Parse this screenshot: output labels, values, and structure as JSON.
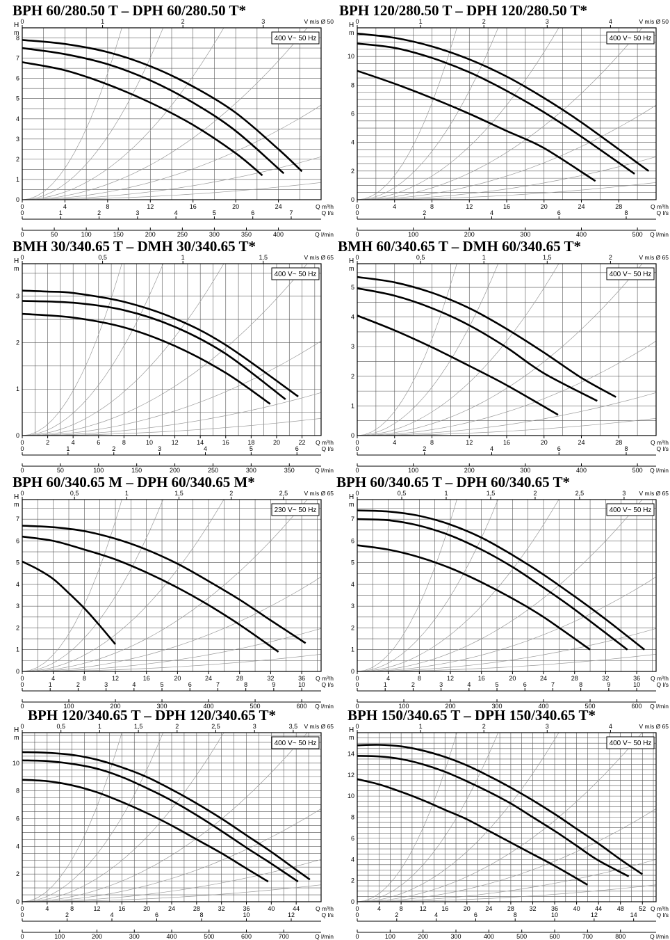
{
  "chart_data": [
    {
      "type": "line",
      "title": "BPH 60/280.50 T – DPH 60/280.50 T*",
      "ylabel": "H",
      "yunit": "m",
      "voltage_label": "400 V~ 50 Hz",
      "x_axis": {
        "label": "Q m³/h",
        "range": [
          0,
          28
        ],
        "ticks": [
          0,
          4,
          8,
          12,
          16,
          20,
          24
        ]
      },
      "y_axis": {
        "range": [
          0,
          8.5
        ],
        "ticks": [
          0,
          1,
          2,
          3,
          4,
          5,
          6,
          7,
          8
        ]
      },
      "velocity_axis": {
        "label": "V m/s Ø 50",
        "ticks": [
          0,
          1,
          2,
          3
        ]
      },
      "flow_ls_axis": {
        "label": "Q l/s",
        "ticks": [
          0,
          1,
          2,
          3,
          4,
          5,
          6,
          7
        ]
      },
      "flow_lmin_axis": {
        "label": "Q l/min",
        "ticks": [
          0,
          50,
          100,
          150,
          200,
          250,
          300,
          350,
          400
        ]
      },
      "grid": true,
      "series": [
        {
          "x": [
            0,
            4,
            8,
            12,
            16,
            20,
            22.5
          ],
          "y": [
            6.8,
            6.4,
            5.7,
            4.8,
            3.7,
            2.3,
            1.2
          ]
        },
        {
          "x": [
            0,
            4,
            8,
            12,
            16,
            20,
            24.5
          ],
          "y": [
            7.5,
            7.2,
            6.7,
            5.9,
            4.8,
            3.4,
            1.3
          ]
        },
        {
          "x": [
            0,
            4,
            8,
            12,
            16,
            20,
            24,
            26.2
          ],
          "y": [
            7.9,
            7.7,
            7.3,
            6.6,
            5.6,
            4.3,
            2.5,
            1.4
          ]
        }
      ]
    },
    {
      "type": "line",
      "title": "BPH 120/280.50 T – DPH 120/280.50 T*",
      "ylabel": "H",
      "yunit": "m",
      "voltage_label": "400 V~ 50 Hz",
      "x_axis": {
        "label": "Q m³/h",
        "range": [
          0,
          32
        ],
        "ticks": [
          0,
          4,
          8,
          12,
          16,
          20,
          24,
          28
        ]
      },
      "y_axis": {
        "range": [
          0,
          12
        ],
        "ticks": [
          0,
          2,
          4,
          6,
          8,
          10
        ]
      },
      "velocity_axis": {
        "label": "V m/s Ø 50",
        "ticks": [
          0,
          1,
          2,
          3,
          4
        ]
      },
      "flow_ls_axis": {
        "label": "Q l/s",
        "ticks": [
          0,
          2,
          4,
          6,
          8
        ]
      },
      "flow_lmin_axis": {
        "label": "Q l/min",
        "ticks": [
          0,
          100,
          200,
          300,
          400,
          500
        ]
      },
      "grid": true,
      "series": [
        {
          "x": [
            0,
            4,
            8,
            12,
            16,
            20,
            25.5
          ],
          "y": [
            9.0,
            8.1,
            7.1,
            6.0,
            4.8,
            3.6,
            1.3
          ]
        },
        {
          "x": [
            0,
            4,
            8,
            12,
            16,
            20,
            24,
            29.7
          ],
          "y": [
            10.9,
            10.6,
            9.9,
            8.9,
            7.6,
            6.1,
            4.4,
            1.8
          ]
        },
        {
          "x": [
            0,
            4,
            8,
            12,
            16,
            20,
            24,
            31.2
          ],
          "y": [
            11.6,
            11.3,
            10.7,
            9.8,
            8.6,
            7.1,
            5.4,
            2.0
          ]
        }
      ]
    },
    {
      "type": "line",
      "title": "BMH 30/340.65 T – DMH 30/340.65 T*",
      "ylabel": "H",
      "yunit": "m",
      "voltage_label": "400 V~ 50 Hz",
      "x_axis": {
        "label": "Q m³/h",
        "range": [
          0,
          23.5
        ],
        "ticks": [
          0,
          2,
          4,
          6,
          8,
          10,
          12,
          14,
          16,
          18,
          20,
          22
        ]
      },
      "y_axis": {
        "range": [
          0,
          3.7
        ],
        "ticks": [
          0,
          1,
          2,
          3
        ]
      },
      "velocity_axis": {
        "label": "V m/s Ø 65",
        "ticks": [
          0,
          0.5,
          1,
          1.5
        ]
      },
      "flow_ls_axis": {
        "label": "Q l/s",
        "ticks": [
          0,
          1,
          2,
          3,
          4,
          5,
          6
        ]
      },
      "flow_lmin_axis": {
        "label": "Q l/min",
        "ticks": [
          0,
          50,
          100,
          150,
          200,
          250,
          300,
          350
        ]
      },
      "grid": true,
      "series": [
        {
          "x": [
            0,
            4,
            8,
            12,
            16,
            19.5
          ],
          "y": [
            2.62,
            2.54,
            2.33,
            1.93,
            1.35,
            0.68
          ]
        },
        {
          "x": [
            0,
            4,
            8,
            12,
            16,
            20.7
          ],
          "y": [
            2.9,
            2.86,
            2.7,
            2.34,
            1.76,
            0.78
          ]
        },
        {
          "x": [
            0,
            2,
            4,
            8,
            12,
            16,
            21.7
          ],
          "y": [
            3.12,
            3.1,
            3.07,
            2.88,
            2.52,
            1.95,
            0.84
          ]
        }
      ]
    },
    {
      "type": "line",
      "title": "BMH 60/340.65 T – DMH 60/340.65 T*",
      "ylabel": "H",
      "yunit": "m",
      "voltage_label": "400 V~ 50 Hz",
      "x_axis": {
        "label": "Q m³/h",
        "range": [
          0,
          32
        ],
        "ticks": [
          0,
          4,
          8,
          12,
          16,
          20,
          24,
          28
        ]
      },
      "y_axis": {
        "range": [
          0,
          5.8
        ],
        "ticks": [
          0,
          1,
          2,
          3,
          4,
          5
        ]
      },
      "velocity_axis": {
        "label": "V m/s Ø 65",
        "ticks": [
          0,
          0.5,
          1,
          1.5,
          2
        ]
      },
      "flow_ls_axis": {
        "label": "Q l/s",
        "ticks": [
          0,
          2,
          4,
          6,
          8
        ]
      },
      "flow_lmin_axis": {
        "label": "Q l/min",
        "ticks": [
          0,
          100,
          200,
          300,
          400,
          500
        ]
      },
      "grid": true,
      "series": [
        {
          "x": [
            0,
            4,
            8,
            12,
            16,
            21.5
          ],
          "y": [
            4.05,
            3.55,
            2.98,
            2.35,
            1.7,
            0.7
          ]
        },
        {
          "x": [
            0,
            4,
            8,
            12,
            16,
            20,
            25.7
          ],
          "y": [
            4.97,
            4.72,
            4.3,
            3.72,
            2.97,
            2.1,
            1.17
          ]
        },
        {
          "x": [
            0,
            4,
            8,
            12,
            16,
            20,
            24,
            27.7
          ],
          "y": [
            5.35,
            5.17,
            4.82,
            4.3,
            3.6,
            2.8,
            1.95,
            1.3
          ]
        }
      ]
    },
    {
      "type": "line",
      "title": "BPH 60/340.65 M – DPH 60/340.65 M*",
      "ylabel": "H",
      "yunit": "m",
      "voltage_label": "230 V~ 50 Hz",
      "x_axis": {
        "label": "Q m³/h",
        "range": [
          0,
          38.5
        ],
        "ticks": [
          0,
          4,
          8,
          12,
          16,
          20,
          24,
          28,
          32,
          36
        ]
      },
      "y_axis": {
        "range": [
          0,
          7.9
        ],
        "ticks": [
          0,
          1,
          2,
          3,
          4,
          5,
          6,
          7
        ]
      },
      "velocity_axis": {
        "label": "V m/s Ø 65",
        "ticks": [
          0,
          0.5,
          1,
          1.5,
          2,
          2.5
        ]
      },
      "flow_ls_axis": {
        "label": "Q l/s",
        "ticks": [
          0,
          1,
          2,
          3,
          4,
          5,
          6,
          7,
          8,
          9,
          10
        ]
      },
      "flow_lmin_axis": {
        "label": "Q l/min",
        "ticks": [
          0,
          100,
          200,
          300,
          400,
          500,
          600
        ]
      },
      "grid": true,
      "series": [
        {
          "x": [
            0,
            2,
            4,
            6,
            8,
            10,
            12
          ],
          "y": [
            5.05,
            4.7,
            4.25,
            3.6,
            2.9,
            2.1,
            1.25
          ]
        },
        {
          "x": [
            0,
            4,
            8,
            12,
            16,
            20,
            24,
            28,
            33
          ],
          "y": [
            6.2,
            6.0,
            5.6,
            5.15,
            4.55,
            3.85,
            3.05,
            2.15,
            0.9
          ]
        },
        {
          "x": [
            0,
            4,
            8,
            12,
            16,
            20,
            24,
            28,
            32,
            36.5
          ],
          "y": [
            6.7,
            6.63,
            6.45,
            6.1,
            5.6,
            4.95,
            4.15,
            3.3,
            2.35,
            1.3
          ]
        }
      ]
    },
    {
      "type": "line",
      "title": "BPH 60/340.65 T – DPH 60/340.65 T*",
      "ylabel": "H",
      "yunit": "m",
      "voltage_label": "400 V~ 50 Hz",
      "x_axis": {
        "label": "Q m³/h",
        "range": [
          0,
          38.5
        ],
        "ticks": [
          0,
          4,
          8,
          12,
          16,
          20,
          24,
          28,
          32,
          36
        ]
      },
      "y_axis": {
        "range": [
          0,
          7.9
        ],
        "ticks": [
          0,
          1,
          2,
          3,
          4,
          5,
          6,
          7
        ]
      },
      "velocity_axis": {
        "label": "V m/s Ø 65",
        "ticks": [
          0,
          0.5,
          1,
          1.5,
          2,
          2.5,
          3
        ]
      },
      "flow_ls_axis": {
        "label": "Q l/s",
        "ticks": [
          0,
          1,
          2,
          3,
          4,
          5,
          6,
          7,
          8,
          9,
          10
        ]
      },
      "flow_lmin_axis": {
        "label": "Q l/min",
        "ticks": [
          0,
          100,
          200,
          300,
          400,
          500,
          600
        ]
      },
      "grid": true,
      "series": [
        {
          "x": [
            0,
            4,
            8,
            12,
            16,
            20,
            24,
            30
          ],
          "y": [
            5.8,
            5.6,
            5.25,
            4.75,
            4.1,
            3.35,
            2.5,
            1.0
          ]
        },
        {
          "x": [
            0,
            4,
            8,
            12,
            16,
            20,
            24,
            28,
            34.8
          ],
          "y": [
            7.0,
            6.95,
            6.7,
            6.25,
            5.6,
            4.8,
            3.85,
            2.85,
            1.0
          ]
        },
        {
          "x": [
            0,
            4,
            8,
            12,
            16,
            20,
            24,
            28,
            32,
            37
          ],
          "y": [
            7.4,
            7.35,
            7.15,
            6.75,
            6.15,
            5.35,
            4.45,
            3.45,
            2.4,
            1.0
          ]
        }
      ]
    },
    {
      "type": "line",
      "title": "BPH 120/340.65 T – DPH 120/340.65 T*",
      "ylabel": "H",
      "yunit": "m",
      "voltage_label": "400 V~ 50 Hz",
      "x_axis": {
        "label": "Q m³/h",
        "range": [
          0,
          48
        ],
        "ticks": [
          0,
          4,
          8,
          12,
          16,
          20,
          24,
          28,
          32,
          36,
          40,
          44
        ]
      },
      "y_axis": {
        "range": [
          0,
          12.2
        ],
        "ticks": [
          0,
          2,
          4,
          6,
          8,
          10
        ]
      },
      "velocity_axis": {
        "label": "V m/s Ø 65",
        "ticks": [
          0,
          0.5,
          1,
          1.5,
          2,
          2.5,
          3,
          3.5
        ]
      },
      "flow_ls_axis": {
        "label": "Q l/s",
        "ticks": [
          0,
          2,
          4,
          6,
          8,
          10,
          12
        ]
      },
      "flow_lmin_axis": {
        "label": "Q l/min",
        "ticks": [
          0,
          100,
          200,
          300,
          400,
          500,
          600,
          700
        ]
      },
      "grid": true,
      "series": [
        {
          "x": [
            0,
            4,
            8,
            12,
            16,
            20,
            24,
            28,
            32,
            36,
            39.5
          ],
          "y": [
            8.8,
            8.7,
            8.4,
            7.9,
            7.2,
            6.4,
            5.5,
            4.5,
            3.5,
            2.4,
            1.45
          ]
        },
        {
          "x": [
            0,
            4,
            8,
            12,
            16,
            20,
            24,
            28,
            32,
            36,
            40,
            44.3
          ],
          "y": [
            10.2,
            10.15,
            9.95,
            9.6,
            9.0,
            8.2,
            7.3,
            6.25,
            5.1,
            3.9,
            2.75,
            1.45
          ]
        },
        {
          "x": [
            0,
            4,
            8,
            12,
            16,
            20,
            24,
            28,
            32,
            36,
            40,
            44,
            46.2
          ],
          "y": [
            10.8,
            10.75,
            10.6,
            10.25,
            9.7,
            9.0,
            8.1,
            7.1,
            6.0,
            4.8,
            3.6,
            2.3,
            1.6
          ]
        }
      ]
    },
    {
      "type": "line",
      "title": "BPH 150/340.65 T – DPH 150/340.65 T*",
      "ylabel": "H",
      "yunit": "m",
      "voltage_label": "400 V~ 50 Hz",
      "x_axis": {
        "label": "Q m³/h",
        "range": [
          0,
          54.5
        ],
        "ticks": [
          0,
          4,
          8,
          12,
          16,
          20,
          24,
          28,
          32,
          36,
          40,
          44,
          48,
          52
        ]
      },
      "y_axis": {
        "range": [
          0,
          16
        ],
        "ticks": [
          0,
          2,
          4,
          6,
          8,
          10,
          12,
          14
        ]
      },
      "velocity_axis": {
        "label": "V m/s Ø 65",
        "ticks": [
          0,
          1,
          2,
          3,
          4
        ]
      },
      "flow_ls_axis": {
        "label": "Q l/s",
        "ticks": [
          0,
          2,
          4,
          6,
          8,
          10,
          12,
          14
        ]
      },
      "flow_lmin_axis": {
        "label": "Q l/min",
        "ticks": [
          0,
          100,
          200,
          300,
          400,
          500,
          600,
          700,
          800
        ]
      },
      "grid": true,
      "series": [
        {
          "x": [
            0,
            4,
            8,
            12,
            16,
            20,
            24,
            28,
            32,
            36,
            42
          ],
          "y": [
            11.6,
            11.1,
            10.4,
            9.6,
            8.7,
            7.8,
            6.7,
            5.6,
            4.5,
            3.4,
            1.6
          ]
        },
        {
          "x": [
            0,
            4,
            8,
            12,
            16,
            20,
            24,
            28,
            32,
            36,
            40,
            44,
            49.5
          ],
          "y": [
            13.8,
            13.75,
            13.5,
            13.0,
            12.3,
            11.4,
            10.4,
            9.3,
            8.0,
            6.7,
            5.3,
            3.9,
            2.4
          ]
        },
        {
          "x": [
            0,
            4,
            8,
            12,
            16,
            20,
            24,
            28,
            32,
            36,
            40,
            44,
            48,
            52
          ],
          "y": [
            14.8,
            14.85,
            14.7,
            14.3,
            13.7,
            12.9,
            11.9,
            10.8,
            9.6,
            8.3,
            6.9,
            5.5,
            4.0,
            2.6
          ]
        }
      ]
    }
  ]
}
